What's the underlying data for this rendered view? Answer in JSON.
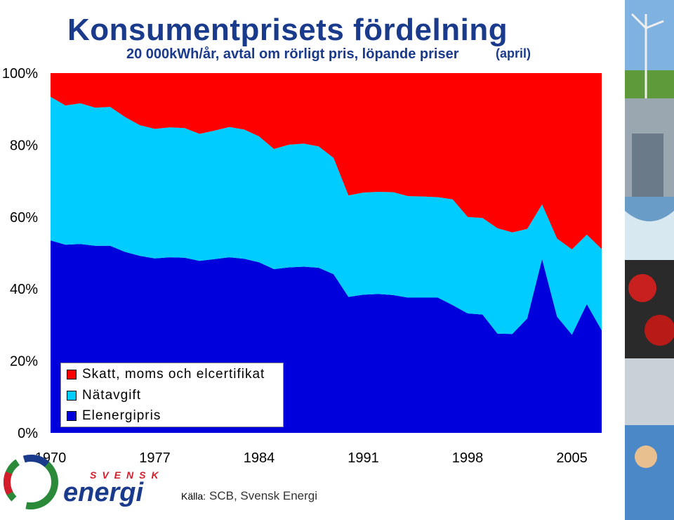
{
  "header": {
    "title": "Konsumentprisets fördelning",
    "subtitle": "20 000kWh/år, avtal om rörligt pris, löpande priser",
    "subtitle_note": "(april)"
  },
  "source": {
    "label": "Källa:",
    "text": "SCB, Svensk Energi"
  },
  "logo": {
    "top_word": "SVENSK",
    "main_word": "energi"
  },
  "colors": {
    "tax": "#ff0000",
    "grid": "#00ccff",
    "energy": "#0000dd",
    "brand_blue": "#1a3a8c",
    "brand_red": "#d41d2a"
  },
  "chart_data": {
    "type": "area",
    "stacked": true,
    "percent": true,
    "x": [
      1970,
      1971,
      1972,
      1973,
      1974,
      1975,
      1976,
      1977,
      1978,
      1979,
      1980,
      1981,
      1982,
      1983,
      1984,
      1985,
      1986,
      1987,
      1988,
      1989,
      1990,
      1991,
      1992,
      1993,
      1994,
      1995,
      1996,
      1997,
      1998,
      1999,
      2000,
      2001,
      2002,
      2003,
      2004,
      2005,
      2006,
      2007
    ],
    "series": [
      {
        "name": "Elenergipris",
        "color": "#0000dd",
        "values": [
          53.5,
          52.3,
          52.5,
          52,
          52,
          50.3,
          49.2,
          48.5,
          48.8,
          48.7,
          47.8,
          48.3,
          48.8,
          48.4,
          47.4,
          45.5,
          46,
          46.2,
          45.9,
          44.1,
          37.8,
          38.4,
          38.6,
          38.3,
          37.6,
          37.6,
          37.6,
          35.5,
          33.2,
          32.9,
          27.6,
          27.5,
          31.8,
          48.3,
          32.3,
          27.3,
          35.8,
          28.5
        ]
      },
      {
        "name": "Nätavgift",
        "color": "#00ccff",
        "values": [
          39.9,
          38.7,
          39.1,
          38.4,
          38.6,
          37.5,
          36.3,
          36,
          36.1,
          36,
          35.3,
          35.7,
          36.2,
          35.9,
          35,
          33.4,
          34.1,
          34.2,
          33.7,
          32.3,
          28.2,
          28.4,
          28.4,
          28.6,
          28.2,
          28.1,
          27.9,
          29.4,
          26.8,
          26.8,
          29.3,
          28.2,
          24.9,
          15.2,
          21.7,
          23.7,
          19.3,
          22.6
        ]
      },
      {
        "name": "Skatt, moms och elcertifikat",
        "color": "#ff0000",
        "values": [
          6.6,
          9.0,
          8.4,
          9.6,
          9.4,
          12.2,
          14.5,
          15.5,
          15.1,
          15.3,
          16.9,
          16.0,
          15.0,
          15.7,
          17.6,
          21.1,
          19.9,
          19.6,
          20.4,
          23.6,
          34.0,
          33.2,
          33.0,
          33.1,
          34.2,
          34.3,
          34.5,
          35.1,
          40.0,
          40.3,
          43.1,
          44.3,
          43.3,
          36.5,
          46.0,
          49.0,
          44.9,
          48.9
        ]
      }
    ],
    "ylim": [
      0,
      100
    ],
    "yticks": [
      "0%",
      "20%",
      "40%",
      "60%",
      "80%",
      "100%"
    ],
    "xticks": [
      "1970",
      "1977",
      "1984",
      "1991",
      "1998",
      "2005"
    ],
    "legend": [
      "Skatt, moms och elcertifikat",
      "Nätavgift",
      "Elenergipris"
    ],
    "legend_position": "bottom-left",
    "grid": false
  }
}
